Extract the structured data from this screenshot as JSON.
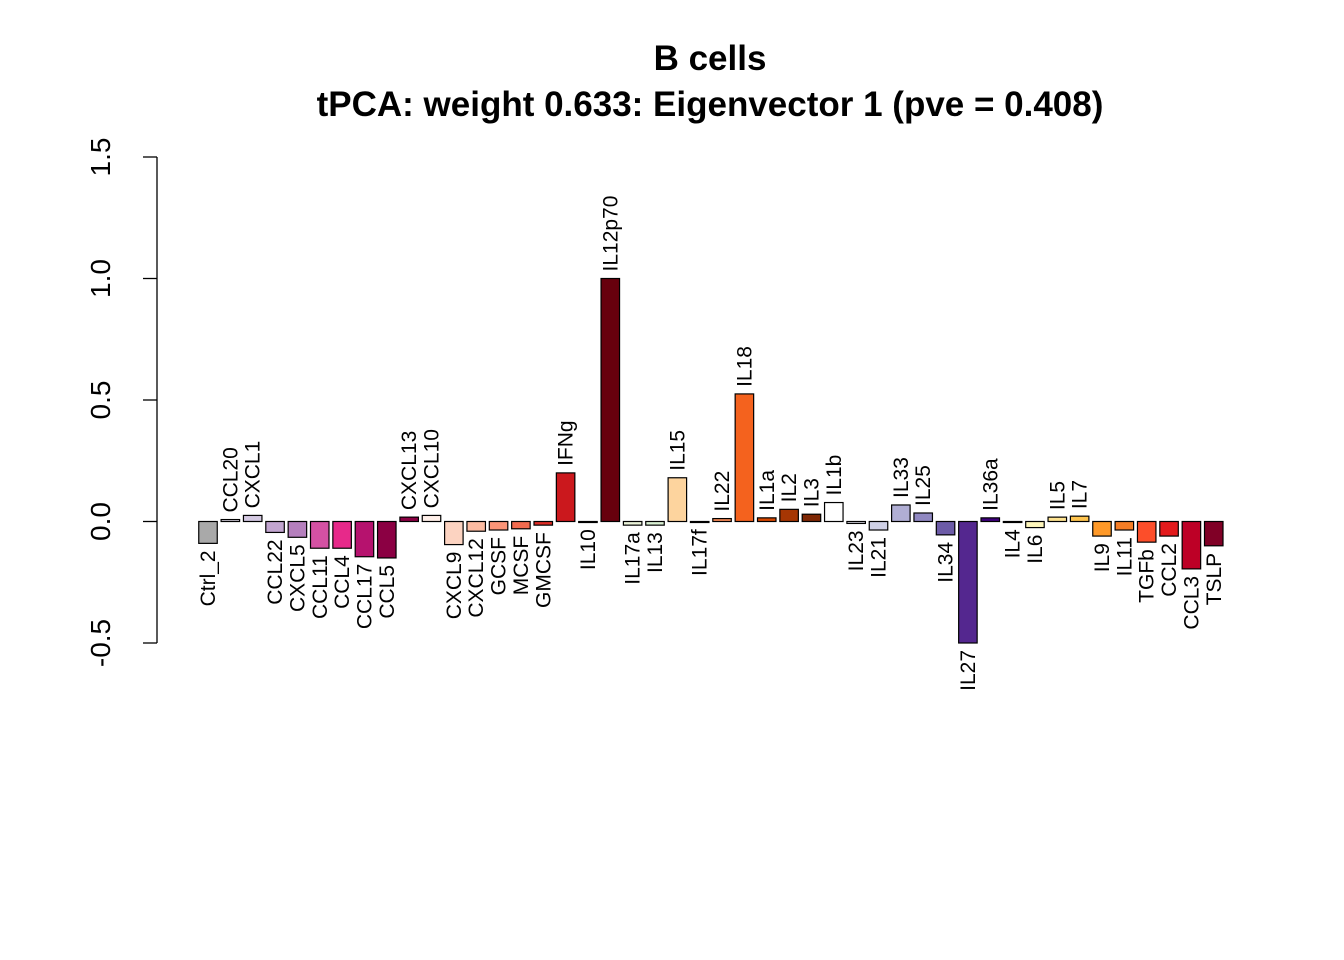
{
  "chart_data": {
    "type": "bar",
    "title": "B cells",
    "subtitle": "tPCA: weight 0.633: Eigenvector 1 (pve = 0.408)",
    "xlabel": "",
    "ylabel": "",
    "ylim": [
      -0.5,
      1.5
    ],
    "yticks": [
      "-0.5",
      "0.0",
      "0.5",
      "1.0",
      "1.5"
    ],
    "grid": false,
    "legend": "none",
    "categories": [
      "Ctrl_2",
      "CCL20",
      "CXCL1",
      "CCL22",
      "CXCL5",
      "CCL11",
      "CCL4",
      "CCL17",
      "CCL5",
      "CXCL13",
      "CXCL10",
      "CXCL9",
      "CXCL12",
      "GCSF",
      "MCSF",
      "GMCSF",
      "IFNg",
      "IL10",
      "IL12p70",
      "IL17a",
      "IL13",
      "IL15",
      "IL17f",
      "IL22",
      "IL18",
      "IL1a",
      "IL2",
      "IL3",
      "IL1b",
      "IL23",
      "IL21",
      "IL33",
      "IL25",
      "IL34",
      "IL27",
      "IL36a",
      "IL4",
      "IL6",
      "IL5",
      "IL7",
      "IL9",
      "IL11",
      "TGFb",
      "CCL2",
      "CCL3",
      "TSLP"
    ],
    "values": [
      -0.09,
      0.008,
      0.025,
      -0.045,
      -0.065,
      -0.11,
      -0.11,
      -0.145,
      -0.15,
      0.018,
      0.025,
      -0.095,
      -0.04,
      -0.035,
      -0.03,
      -0.015,
      0.2,
      -0.003,
      1.0,
      -0.015,
      -0.015,
      0.18,
      -0.003,
      0.012,
      0.525,
      0.015,
      0.05,
      0.03,
      0.078,
      -0.008,
      -0.035,
      0.068,
      0.035,
      -0.055,
      -0.5,
      0.015,
      -0.003,
      -0.025,
      0.018,
      0.022,
      -0.06,
      -0.035,
      -0.085,
      -0.06,
      -0.195,
      -0.1
    ],
    "colors": [
      "#a9a9a9",
      "#e8e3ef",
      "#d4c9e2",
      "#c2a5d0",
      "#b57fbd",
      "#d451a3",
      "#e7298a",
      "#b6126e",
      "#8b0043",
      "#8b0043",
      "#fff0ea",
      "#fcd3c1",
      "#fcbba1",
      "#fb9477",
      "#f26b4f",
      "#de2d26",
      "#cb181d",
      "#a50f15",
      "#67000d",
      "#eaf3d9",
      "#d9f0d3",
      "#fdd49e",
      "#fdbb84",
      "#fc8d59",
      "#f4621e",
      "#d94801",
      "#a63603",
      "#7f2704",
      "#ffffff",
      "#ebeaf4",
      "#cfd0e6",
      "#b0aed4",
      "#9088c1",
      "#6c5ba7",
      "#54278f",
      "#3f007d",
      "#fffee8",
      "#fff7bc",
      "#fee391",
      "#fec44f",
      "#fe9929",
      "#f57d25",
      "#fc4e2a",
      "#e31a1c",
      "#bd0026",
      "#800026"
    ]
  }
}
